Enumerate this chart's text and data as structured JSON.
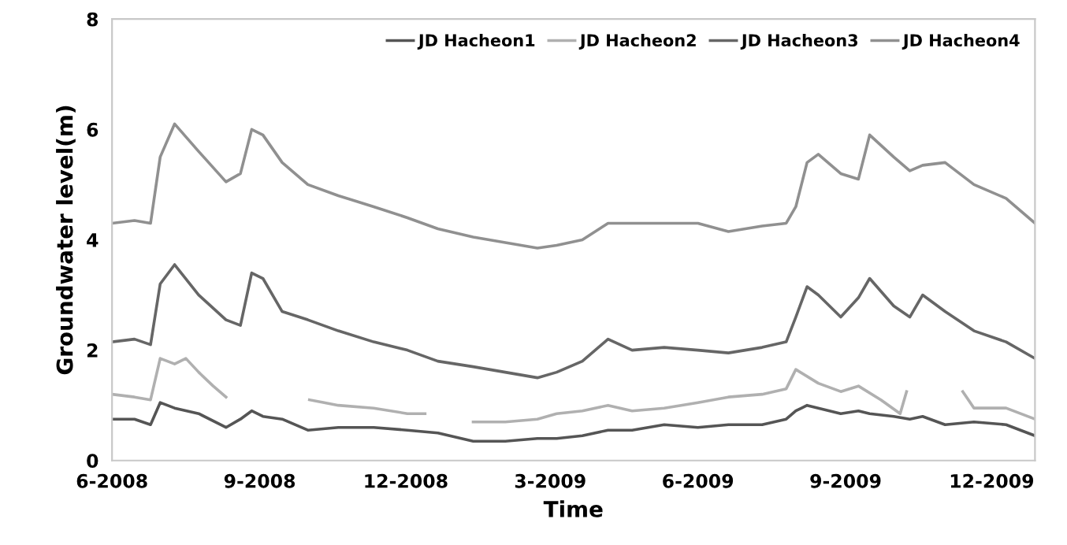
{
  "chart_data": {
    "type": "line",
    "xlabel": "Time",
    "ylabel": "Groundwater level(m)",
    "x": [
      "2008-06-01",
      "2008-06-15",
      "2008-06-25",
      "2008-07-01",
      "2008-07-10",
      "2008-07-25",
      "2008-08-11",
      "2008-08-20",
      "2008-08-27",
      "2008-09-03",
      "2008-09-15",
      "2008-10-01",
      "2008-10-20",
      "2008-11-11",
      "2008-12-02",
      "2008-12-21",
      "2009-01-12",
      "2009-02-01",
      "2009-02-21",
      "2009-03-05",
      "2009-03-21",
      "2009-04-06",
      "2009-04-21",
      "2009-05-11",
      "2009-06-01",
      "2009-06-20",
      "2009-07-11",
      "2009-07-26",
      "2009-08-01",
      "2009-08-08",
      "2009-08-15",
      "2009-08-29",
      "2009-09-09",
      "2009-09-16",
      "2009-10-01",
      "2009-10-11",
      "2009-10-19",
      "2009-11-02",
      "2009-11-20",
      "2009-12-10",
      "2009-12-28"
    ],
    "series": [
      {
        "name": "JD Hacheon1",
        "color": "#555555",
        "values": [
          0.75,
          0.75,
          0.65,
          1.05,
          0.95,
          0.85,
          0.6,
          0.75,
          0.9,
          0.8,
          0.75,
          0.55,
          0.6,
          0.6,
          0.55,
          0.5,
          0.35,
          0.35,
          0.4,
          0.4,
          0.45,
          0.55,
          0.55,
          0.65,
          0.6,
          0.65,
          0.65,
          0.75,
          0.9,
          1.0,
          0.95,
          0.85,
          0.9,
          0.85,
          0.8,
          0.75,
          0.8,
          0.65,
          0.7,
          0.65,
          0.45
        ]
      },
      {
        "name": "JD Hacheon2",
        "color": "#b0b0b0",
        "x": [
          "2008-06-01",
          "2008-06-15",
          "2008-06-25",
          "2008-07-01",
          "2008-07-10",
          "2008-07-17",
          "2008-07-25",
          "2008-08-03",
          "2008-08-11",
          "2008-09-05",
          "2008-10-02",
          "2008-10-20",
          "2008-11-11",
          "2008-12-02",
          "2008-12-13",
          "2008-12-21",
          "2009-01-12",
          "2009-02-01",
          "2009-02-21",
          "2009-03-05",
          "2009-03-21",
          "2009-04-06",
          "2009-04-21",
          "2009-05-11",
          "2009-06-01",
          "2009-06-20",
          "2009-07-11",
          "2009-07-26",
          "2009-08-01",
          "2009-08-15",
          "2009-08-29",
          "2009-09-09",
          "2009-09-23",
          "2009-10-05",
          "2009-10-09",
          "2009-10-25",
          "2009-11-13",
          "2009-11-20",
          "2009-12-10",
          "2009-12-28"
        ],
        "values": [
          1.2,
          1.15,
          1.1,
          1.85,
          1.75,
          1.85,
          1.6,
          1.35,
          1.15,
          null,
          1.1,
          1.0,
          0.95,
          0.85,
          0.85,
          null,
          0.7,
          0.7,
          0.75,
          0.85,
          0.9,
          1.0,
          0.9,
          0.95,
          1.05,
          1.15,
          1.2,
          1.3,
          1.65,
          1.4,
          1.25,
          1.35,
          1.1,
          0.85,
          1.25,
          null,
          1.25,
          0.95,
          0.95,
          0.75
        ]
      },
      {
        "name": "JD Hacheon3",
        "color": "#666666",
        "values": [
          2.15,
          2.2,
          2.1,
          3.2,
          3.55,
          3.0,
          2.55,
          2.45,
          3.4,
          3.3,
          2.7,
          2.55,
          2.35,
          2.15,
          2.0,
          1.8,
          1.7,
          1.6,
          1.5,
          1.6,
          1.8,
          2.2,
          2.0,
          2.05,
          2.0,
          1.95,
          2.05,
          2.15,
          2.6,
          3.15,
          3.0,
          2.6,
          2.95,
          3.3,
          2.8,
          2.6,
          3.0,
          2.7,
          2.35,
          2.15,
          1.85
        ]
      },
      {
        "name": "JD Hacheon4",
        "color": "#909090",
        "values": [
          4.3,
          4.35,
          4.3,
          5.5,
          6.1,
          5.6,
          5.05,
          5.2,
          6.0,
          5.9,
          5.4,
          5.0,
          4.8,
          4.6,
          4.4,
          4.2,
          4.05,
          3.95,
          3.85,
          3.9,
          4.0,
          4.3,
          4.3,
          4.3,
          4.3,
          4.15,
          4.25,
          4.3,
          4.6,
          5.4,
          5.55,
          5.2,
          5.1,
          5.9,
          5.5,
          5.25,
          5.35,
          5.4,
          5.0,
          4.75,
          4.3
        ]
      }
    ],
    "xlim": [
      "2008-06-01",
      "2009-12-28"
    ],
    "xticks": [
      {
        "value": "2008-06-01",
        "label": "6-2008"
      },
      {
        "value": "2008-09-01",
        "label": "9-2008"
      },
      {
        "value": "2008-12-01",
        "label": "12-2008"
      },
      {
        "value": "2009-03-01",
        "label": "3-2009"
      },
      {
        "value": "2009-06-01",
        "label": "6-2009"
      },
      {
        "value": "2009-09-01",
        "label": "9-2009"
      },
      {
        "value": "2009-12-01",
        "label": "12-2009"
      }
    ],
    "ylim": [
      0,
      8
    ],
    "yticks": [
      0,
      2,
      4,
      6,
      8
    ],
    "grid": false,
    "legend": "top right"
  }
}
